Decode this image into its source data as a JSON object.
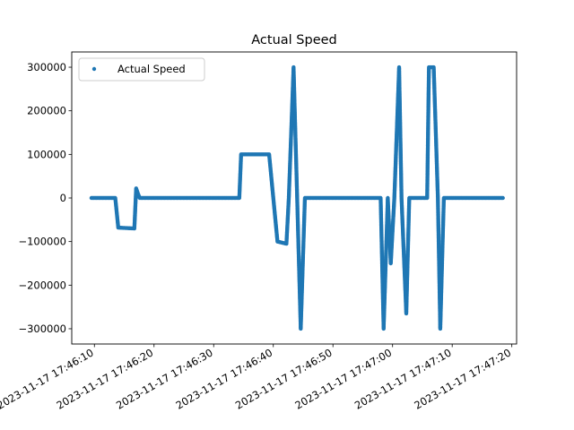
{
  "chart_data": {
    "type": "scatter",
    "title": "Actual Speed",
    "xlabel": "",
    "ylabel": "",
    "x_axis_type": "datetime",
    "xlim": [
      "2023-11-17 17:46:06.2",
      "2023-11-17 17:47:20.8"
    ],
    "ylim": [
      -335000,
      335000
    ],
    "x_ticks": [
      "2023-11-17 17:46:10",
      "2023-11-17 17:46:20",
      "2023-11-17 17:46:30",
      "2023-11-17 17:46:40",
      "2023-11-17 17:46:50",
      "2023-11-17 17:47:00",
      "2023-11-17 17:47:10",
      "2023-11-17 17:47:20"
    ],
    "y_ticks": [
      -300000,
      -200000,
      -100000,
      0,
      100000,
      200000,
      300000
    ],
    "y_tick_labels": [
      "−300000",
      "−200000",
      "−100000",
      "0",
      "100000",
      "200000",
      "300000"
    ],
    "grid": false,
    "legend_position": "top-left",
    "color": "#1f77b4",
    "series": [
      {
        "name": "Actual Speed",
        "points": [
          [
            "2023-11-17 17:46:09.5",
            0
          ],
          [
            "2023-11-17 17:46:13.5",
            0
          ],
          [
            "2023-11-17 17:46:14.0",
            -68000
          ],
          [
            "2023-11-17 17:46:16.7",
            -70000
          ],
          [
            "2023-11-17 17:46:17.0",
            22000
          ],
          [
            "2023-11-17 17:46:17.3",
            10000
          ],
          [
            "2023-11-17 17:46:17.6",
            0
          ],
          [
            "2023-11-17 17:46:34.3",
            0
          ],
          [
            "2023-11-17 17:46:34.6",
            100000
          ],
          [
            "2023-11-17 17:46:39.3",
            100000
          ],
          [
            "2023-11-17 17:46:40.0",
            0
          ],
          [
            "2023-11-17 17:46:40.7",
            -100000
          ],
          [
            "2023-11-17 17:46:42.2",
            -105000
          ],
          [
            "2023-11-17 17:46:42.6",
            0
          ],
          [
            "2023-11-17 17:46:43.4",
            300000
          ],
          [
            "2023-11-17 17:46:44.0",
            0
          ],
          [
            "2023-11-17 17:46:44.6",
            -300000
          ],
          [
            "2023-11-17 17:46:45.3",
            0
          ],
          [
            "2023-11-17 17:46:58.0",
            0
          ],
          [
            "2023-11-17 17:46:58.5",
            -300000
          ],
          [
            "2023-11-17 17:46:59.2",
            0
          ],
          [
            "2023-11-17 17:46:59.7",
            -150000
          ],
          [
            "2023-11-17 17:47:00.3",
            0
          ],
          [
            "2023-11-17 17:47:01.1",
            300000
          ],
          [
            "2023-11-17 17:47:01.5",
            0
          ],
          [
            "2023-11-17 17:47:02.3",
            -265000
          ],
          [
            "2023-11-17 17:47:02.8",
            0
          ],
          [
            "2023-11-17 17:47:05.8",
            0
          ],
          [
            "2023-11-17 17:47:06.1",
            300000
          ],
          [
            "2023-11-17 17:47:06.9",
            300000
          ],
          [
            "2023-11-17 17:47:07.6",
            0
          ],
          [
            "2023-11-17 17:47:08.0",
            -300000
          ],
          [
            "2023-11-17 17:47:08.6",
            0
          ],
          [
            "2023-11-17 17:47:18.5",
            0
          ]
        ]
      }
    ]
  }
}
